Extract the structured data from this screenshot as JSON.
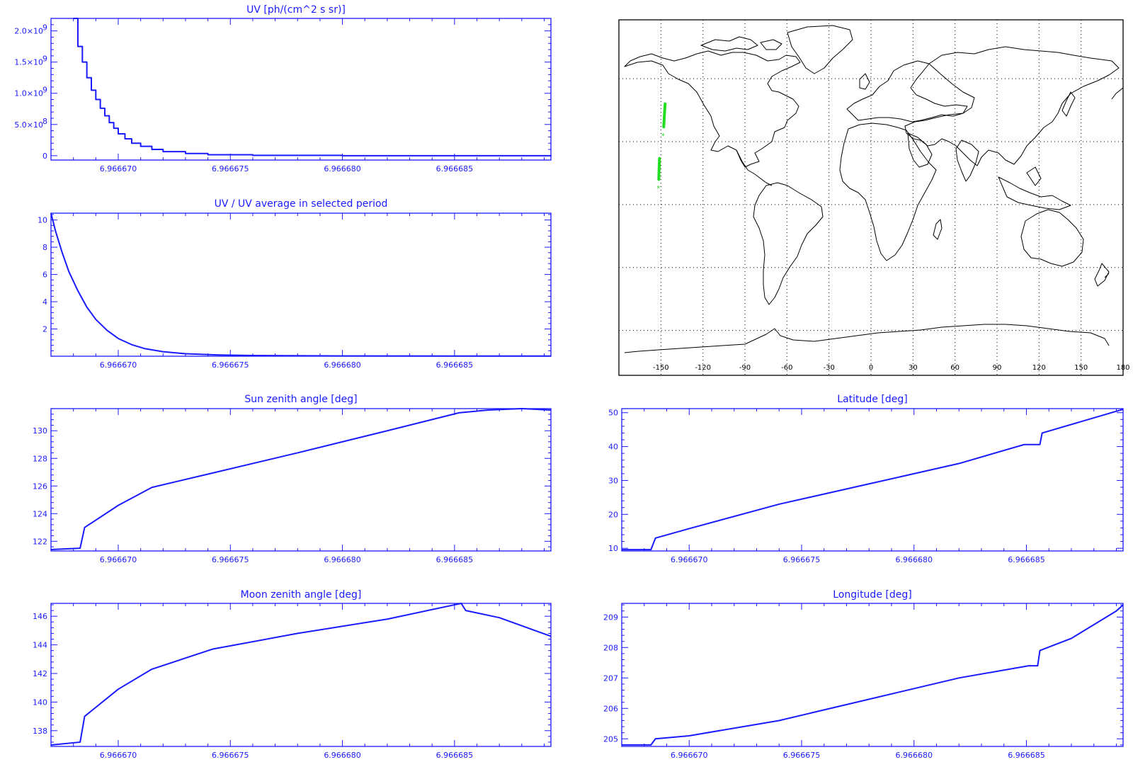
{
  "chart_data": [
    {
      "id": "uv",
      "type": "line",
      "title": "UV [ph/(cm^2 s sr)]",
      "x_ticks": [
        "6.966670",
        "6.966675",
        "6.966680",
        "6.966685"
      ],
      "x_tick_values": [
        6.96667,
        6.966675,
        6.96668,
        6.966685
      ],
      "xlim": [
        6.966667,
        6.9666893
      ],
      "ylim": [
        -70000000.0,
        2200000000.0
      ],
      "y_ticks": [
        {
          "value": 0,
          "label": "0"
        },
        {
          "value": 500000000.0,
          "label": "5.0×10",
          "exp": "8"
        },
        {
          "value": 1000000000.0,
          "label": "1.0×10",
          "exp": "9"
        },
        {
          "value": 1500000000.0,
          "label": "1.5×10",
          "exp": "9"
        },
        {
          "value": 2000000000.0,
          "label": "2.0×10",
          "exp": "9"
        }
      ],
      "series": [
        {
          "style": "step",
          "x": [
            6.966668,
            6.9666682,
            6.9666684,
            6.9666686,
            6.9666688,
            6.966669,
            6.9666692,
            6.9666694,
            6.9666696,
            6.9666698,
            6.96667,
            6.9666703,
            6.9666706,
            6.966671,
            6.9666715,
            6.966672,
            6.966673,
            6.966674,
            6.966676,
            6.96668,
            6.9666893
          ],
          "y": [
            2200000000.0,
            1750000000.0,
            1500000000.0,
            1250000000.0,
            1050000000.0,
            900000000.0,
            760000000.0,
            640000000.0,
            530000000.0,
            440000000.0,
            350000000.0,
            270000000.0,
            200000000.0,
            150000000.0,
            100000000.0,
            65000000.0,
            35000000.0,
            15000000.0,
            5000000.0,
            0,
            -10000000.0
          ]
        }
      ]
    },
    {
      "id": "uv_ratio",
      "type": "line",
      "title": "UV / UV average in selected period",
      "x_ticks": [
        "6.966670",
        "6.966675",
        "6.966680",
        "6.966685"
      ],
      "x_tick_values": [
        6.96667,
        6.966675,
        6.96668,
        6.966685
      ],
      "xlim": [
        6.966667,
        6.9666893
      ],
      "ylim": [
        0,
        10.5
      ],
      "y_ticks": [
        {
          "value": 2,
          "label": "2"
        },
        {
          "value": 4,
          "label": "4"
        },
        {
          "value": 6,
          "label": "6"
        },
        {
          "value": 8,
          "label": "8"
        },
        {
          "value": 10,
          "label": "10"
        }
      ],
      "series": [
        {
          "x": [
            6.966667,
            6.9666672,
            6.9666675,
            6.9666678,
            6.9666682,
            6.9666686,
            6.966669,
            6.9666695,
            6.96667,
            6.9666706,
            6.9666712,
            6.966672,
            6.966673,
            6.9666745,
            6.966676,
            6.96668,
            6.9666893
          ],
          "y": [
            10.5,
            9.2,
            7.6,
            6.2,
            4.8,
            3.6,
            2.7,
            1.9,
            1.3,
            0.85,
            0.55,
            0.33,
            0.18,
            0.09,
            0.05,
            0.02,
            0.01
          ]
        }
      ]
    },
    {
      "id": "sun_zenith",
      "type": "line",
      "title": "Sun zenith angle [deg]",
      "x_ticks": [
        "6.966670",
        "6.966675",
        "6.966680",
        "6.966685"
      ],
      "x_tick_values": [
        6.96667,
        6.966675,
        6.96668,
        6.966685
      ],
      "xlim": [
        6.966667,
        6.9666893
      ],
      "ylim": [
        121.3,
        131.6
      ],
      "y_ticks": [
        {
          "value": 122,
          "label": "122"
        },
        {
          "value": 124,
          "label": "124"
        },
        {
          "value": 126,
          "label": "126"
        },
        {
          "value": 128,
          "label": "128"
        },
        {
          "value": 130,
          "label": "130"
        }
      ],
      "series": [
        {
          "x": [
            6.966667,
            6.9666683,
            6.9666685,
            6.96667,
            6.9666715,
            6.9666741,
            6.966678,
            6.966682,
            6.9666852,
            6.9666865,
            6.966688,
            6.9666893
          ],
          "y": [
            121.4,
            121.5,
            123.0,
            124.6,
            125.9,
            126.9,
            128.4,
            130.0,
            131.3,
            131.5,
            131.6,
            131.5
          ]
        }
      ]
    },
    {
      "id": "latitude",
      "type": "line",
      "title": "Latitude [deg]",
      "x_ticks": [
        "6.966670",
        "6.966675",
        "6.966680",
        "6.966685"
      ],
      "x_tick_values": [
        6.96667,
        6.966675,
        6.96668,
        6.966685
      ],
      "xlim": [
        6.966667,
        6.9666893
      ],
      "ylim": [
        9.2,
        51.2
      ],
      "y_ticks": [
        {
          "value": 10,
          "label": "10"
        },
        {
          "value": 20,
          "label": "20"
        },
        {
          "value": 30,
          "label": "30"
        },
        {
          "value": 40,
          "label": "40"
        },
        {
          "value": 50,
          "label": "50"
        }
      ],
      "series": [
        {
          "x": [
            6.966667,
            6.9666683,
            6.9666685,
            6.96667,
            6.966674,
            6.966678,
            6.966682,
            6.9666849,
            6.9666856,
            6.9666857,
            6.9666875,
            6.9666893
          ],
          "y": [
            9.6,
            9.6,
            13.0,
            15.8,
            23.0,
            29.0,
            35.0,
            40.6,
            40.6,
            44.0,
            47.5,
            51.0
          ]
        }
      ]
    },
    {
      "id": "moon_zenith",
      "type": "line",
      "title": "Moon zenith angle [deg]",
      "x_ticks": [
        "6.966670",
        "6.966675",
        "6.966680",
        "6.966685"
      ],
      "x_tick_values": [
        6.96667,
        6.966675,
        6.96668,
        6.966685
      ],
      "xlim": [
        6.966667,
        6.9666893
      ],
      "ylim": [
        136.9,
        146.9
      ],
      "y_ticks": [
        {
          "value": 138,
          "label": "138"
        },
        {
          "value": 140,
          "label": "140"
        },
        {
          "value": 142,
          "label": "142"
        },
        {
          "value": 144,
          "label": "144"
        },
        {
          "value": 146,
          "label": "146"
        }
      ],
      "series": [
        {
          "x": [
            6.966667,
            6.9666683,
            6.9666685,
            6.96667,
            6.9666715,
            6.9666742,
            6.966678,
            6.966682,
            6.9666853,
            6.9666855,
            6.966687,
            6.9666893
          ],
          "y": [
            137.0,
            137.2,
            139.0,
            140.9,
            142.3,
            143.7,
            144.8,
            145.8,
            146.9,
            146.4,
            145.9,
            144.6
          ]
        }
      ]
    },
    {
      "id": "longitude",
      "type": "line",
      "title": "Longitude [deg]",
      "x_ticks": [
        "6.966670",
        "6.966675",
        "6.966680",
        "6.966685"
      ],
      "x_tick_values": [
        6.96667,
        6.966675,
        6.96668,
        6.966685
      ],
      "xlim": [
        6.966667,
        6.9666893
      ],
      "ylim": [
        204.75,
        209.45
      ],
      "y_ticks": [
        {
          "value": 205,
          "label": "205"
        },
        {
          "value": 206,
          "label": "206"
        },
        {
          "value": 207,
          "label": "207"
        },
        {
          "value": 208,
          "label": "208"
        },
        {
          "value": 209,
          "label": "209"
        }
      ],
      "series": [
        {
          "x": [
            6.966667,
            6.9666683,
            6.9666685,
            6.96667,
            6.966674,
            6.966678,
            6.966682,
            6.9666851,
            6.9666855,
            6.9666856,
            6.966687,
            6.966689,
            6.9666893
          ],
          "y": [
            204.8,
            204.8,
            205.0,
            205.1,
            205.6,
            206.3,
            207.0,
            207.4,
            207.4,
            207.9,
            208.3,
            209.2,
            209.4
          ]
        }
      ]
    }
  ],
  "map": {
    "lon_labels": [
      "-150",
      "-120",
      "-90",
      "-60",
      "-30",
      "0",
      "30",
      "60",
      "90",
      "120",
      "150",
      "180"
    ],
    "lon_values": [
      -150,
      -120,
      -90,
      -60,
      -30,
      0,
      30,
      60,
      90,
      120,
      150,
      180
    ],
    "track_color": "#22dd22",
    "track": [
      {
        "lon": [
          -147.0,
          -147.5,
          -148.0
        ],
        "lat": [
          48,
          43,
          37
        ]
      },
      {
        "lon": [
          -151.0,
          -151.3,
          -151.5
        ],
        "lat": [
          22,
          17,
          12
        ]
      }
    ],
    "track_markers": [
      {
        "lon": -148.5,
        "lat": 33
      },
      {
        "lon": -151.8,
        "lat": 8
      }
    ]
  },
  "colors": {
    "axis": "#1a1aff",
    "series": "#1a1aff",
    "map_frame": "#000000",
    "track": "#22dd22"
  }
}
